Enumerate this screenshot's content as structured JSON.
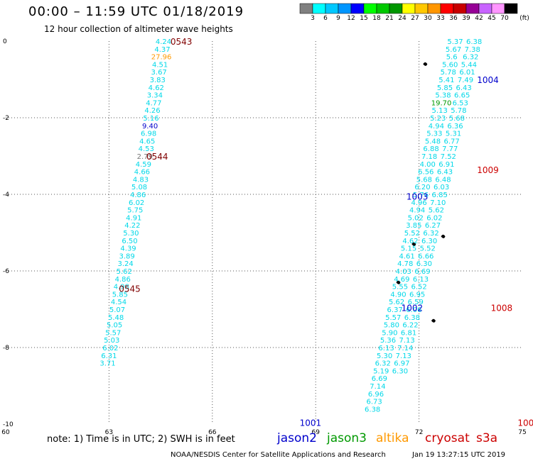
{
  "header": {
    "title": "00:00 – 11:59 UTC 01/18/2019",
    "subtitle": "12 hour collection of altimeter wave heights"
  },
  "colorbar": {
    "labels": [
      "3",
      "6",
      "9",
      "12",
      "15",
      "18",
      "21",
      "24",
      "27",
      "30",
      "33",
      "36",
      "39",
      "42",
      "45",
      "70"
    ],
    "unit": "(ft)",
    "colors": [
      "#808080",
      "#00ffff",
      "#00c8ff",
      "#0096ff",
      "#0000ff",
      "#00ff00",
      "#00c800",
      "#009600",
      "#ffff00",
      "#ffc800",
      "#ff9600",
      "#ff0000",
      "#c80000",
      "#960096",
      "#c864ff",
      "#ff96ff",
      "#000000"
    ]
  },
  "footer": {
    "note": "note: 1) Time is in UTC; 2) SWH is in feet",
    "satellites": [
      {
        "name": "jason2",
        "color": "#0000cc"
      },
      {
        "name": "jason3",
        "color": "#009900"
      },
      {
        "name": "altika",
        "color": "#ff9900"
      },
      {
        "name": "cryosat",
        "color": "#cc0000"
      },
      {
        "name": "s3a",
        "color": "#cc0000"
      }
    ],
    "credit": "NOAA/NESDIS Center for Satellite Applications and Research",
    "timestamp": "Jan 19 13:27:15 UTC 2019"
  },
  "chart_data": {
    "type": "scatter",
    "xlim": [
      60,
      75
    ],
    "ylim": [
      -10,
      0
    ],
    "x_ticks": [
      "60",
      "63",
      "66",
      "69",
      "72",
      "75"
    ],
    "y_ticks": [
      "0",
      "-2",
      "-4",
      "-6",
      "-8",
      "-10"
    ],
    "grid": true,
    "time_labels": [
      {
        "text": "0543",
        "x": 65.1,
        "y": 0.0,
        "color": "#800000"
      },
      {
        "text": "0544",
        "x": 64.4,
        "y": -3.0,
        "color": "#800000"
      },
      {
        "text": "0545",
        "x": 63.6,
        "y": -6.45,
        "color": "#800000"
      },
      {
        "text": "1004",
        "x": 74.0,
        "y": -1.0,
        "color": "#0000cc"
      },
      {
        "text": "1009",
        "x": 74.0,
        "y": -3.35,
        "color": "#cc0000"
      },
      {
        "text": "1003",
        "x": 71.95,
        "y": -4.05,
        "color": "#0000cc"
      },
      {
        "text": "1002",
        "x": 71.8,
        "y": -6.95,
        "color": "#0000cc"
      },
      {
        "text": "1008",
        "x": 74.4,
        "y": -6.95,
        "color": "#cc0000"
      },
      {
        "text": "1001",
        "x": 68.85,
        "y": -9.95,
        "color": "#0000cc"
      },
      {
        "text": "100",
        "x": 75.1,
        "y": -9.95,
        "color": "#cc0000"
      }
    ],
    "series": [
      {
        "name": "jason2",
        "color": "#00d8e8",
        "points": [
          {
            "x": 64.58,
            "y": 0.0,
            "v": "4.24"
          },
          {
            "x": 64.55,
            "y": -0.2,
            "v": "4.37"
          },
          {
            "x": 64.52,
            "y": -0.4,
            "v": "27.96",
            "c": "#ff9900"
          },
          {
            "x": 64.48,
            "y": -0.6,
            "v": "4.51"
          },
          {
            "x": 64.45,
            "y": -0.8,
            "v": "3.67"
          },
          {
            "x": 64.41,
            "y": -1.0,
            "v": "3.83"
          },
          {
            "x": 64.37,
            "y": -1.2,
            "v": "4.62"
          },
          {
            "x": 64.33,
            "y": -1.4,
            "v": "3.34"
          },
          {
            "x": 64.3,
            "y": -1.6,
            "v": "4.77"
          },
          {
            "x": 64.26,
            "y": -1.8,
            "v": "4.26"
          },
          {
            "x": 64.22,
            "y": -2.0,
            "v": "5.16"
          },
          {
            "x": 64.19,
            "y": -2.2,
            "v": "9.40",
            "c": "#0000cc"
          },
          {
            "x": 64.15,
            "y": -2.4,
            "v": "6.98"
          },
          {
            "x": 64.11,
            "y": -2.6,
            "v": "4.65"
          },
          {
            "x": 64.08,
            "y": -2.8,
            "v": "4.53"
          },
          {
            "x": 64.04,
            "y": -3.0,
            "v": "2.79",
            "c": "#777777"
          },
          {
            "x": 64.0,
            "y": -3.2,
            "v": "4.59"
          },
          {
            "x": 63.96,
            "y": -3.4,
            "v": "4.66"
          },
          {
            "x": 63.92,
            "y": -3.6,
            "v": "4.83"
          },
          {
            "x": 63.88,
            "y": -3.8,
            "v": "5.08"
          },
          {
            "x": 63.84,
            "y": -4.0,
            "v": "4.86"
          },
          {
            "x": 63.8,
            "y": -4.2,
            "v": "6.02"
          },
          {
            "x": 63.76,
            "y": -4.4,
            "v": "5.75"
          },
          {
            "x": 63.72,
            "y": -4.6,
            "v": "4.91"
          },
          {
            "x": 63.68,
            "y": -4.8,
            "v": "4.22"
          },
          {
            "x": 63.64,
            "y": -5.0,
            "v": "5.30"
          },
          {
            "x": 63.6,
            "y": -5.2,
            "v": "6.50"
          },
          {
            "x": 63.56,
            "y": -5.4,
            "v": "4.39"
          },
          {
            "x": 63.52,
            "y": -5.6,
            "v": "3.89"
          },
          {
            "x": 63.48,
            "y": -5.8,
            "v": "3.24"
          },
          {
            "x": 63.44,
            "y": -6.0,
            "v": "5.62"
          },
          {
            "x": 63.4,
            "y": -6.2,
            "v": "4.86"
          },
          {
            "x": 63.36,
            "y": -6.4,
            "v": "4.98"
          },
          {
            "x": 63.32,
            "y": -6.6,
            "v": "5.85"
          },
          {
            "x": 63.28,
            "y": -6.8,
            "v": "4.54"
          },
          {
            "x": 63.24,
            "y": -7.0,
            "v": "5.07"
          },
          {
            "x": 63.2,
            "y": -7.2,
            "v": "5.48"
          },
          {
            "x": 63.16,
            "y": -7.4,
            "v": "5.05"
          },
          {
            "x": 63.12,
            "y": -7.6,
            "v": "5.57"
          },
          {
            "x": 63.08,
            "y": -7.8,
            "v": "5.03"
          },
          {
            "x": 63.04,
            "y": -8.0,
            "v": "6.02"
          },
          {
            "x": 63.0,
            "y": -8.2,
            "v": "6.31"
          },
          {
            "x": 62.96,
            "y": -8.4,
            "v": "3.71"
          }
        ]
      },
      {
        "name": "jason3",
        "color": "#00d8e8",
        "points": [
          {
            "x": 73.05,
            "y": 0.0,
            "v": "5.37"
          },
          {
            "x": 73.0,
            "y": -0.2,
            "v": "5.67"
          },
          {
            "x": 72.95,
            "y": -0.4,
            "v": "5.6"
          },
          {
            "x": 72.9,
            "y": -0.6,
            "v": "5.60"
          },
          {
            "x": 72.85,
            "y": -0.8,
            "v": "5.78"
          },
          {
            "x": 72.8,
            "y": -1.0,
            "v": "5.41"
          },
          {
            "x": 72.75,
            "y": -1.2,
            "v": "5.85"
          },
          {
            "x": 72.7,
            "y": -1.4,
            "v": "5.38"
          },
          {
            "x": 72.65,
            "y": -1.6,
            "v": "19.70",
            "c": "#009900"
          },
          {
            "x": 72.6,
            "y": -1.8,
            "v": "5.13"
          },
          {
            "x": 72.55,
            "y": -2.0,
            "v": "5.23"
          },
          {
            "x": 72.5,
            "y": -2.2,
            "v": "4.94"
          },
          {
            "x": 72.45,
            "y": -2.4,
            "v": "5.33"
          },
          {
            "x": 72.4,
            "y": -2.6,
            "v": "5.48"
          },
          {
            "x": 72.35,
            "y": -2.8,
            "v": "6.88"
          },
          {
            "x": 72.3,
            "y": -3.0,
            "v": "7.18"
          },
          {
            "x": 72.25,
            "y": -3.2,
            "v": "4.00"
          },
          {
            "x": 72.2,
            "y": -3.4,
            "v": "6.56"
          },
          {
            "x": 72.15,
            "y": -3.6,
            "v": "5.68"
          },
          {
            "x": 72.1,
            "y": -3.8,
            "v": "6.20"
          },
          {
            "x": 72.05,
            "y": -4.0,
            "v": "5.76"
          },
          {
            "x": 72.0,
            "y": -4.2,
            "v": "4.96"
          },
          {
            "x": 71.95,
            "y": -4.4,
            "v": "4.94"
          },
          {
            "x": 71.9,
            "y": -4.6,
            "v": "5.02"
          },
          {
            "x": 71.85,
            "y": -4.8,
            "v": "3.85"
          },
          {
            "x": 71.8,
            "y": -5.0,
            "v": "5.52"
          },
          {
            "x": 71.75,
            "y": -5.2,
            "v": "4.62"
          },
          {
            "x": 71.7,
            "y": -5.4,
            "v": "5.15"
          },
          {
            "x": 71.65,
            "y": -5.6,
            "v": "4.61"
          },
          {
            "x": 71.6,
            "y": -5.8,
            "v": "4.78"
          },
          {
            "x": 71.55,
            "y": -6.0,
            "v": "4.03"
          },
          {
            "x": 71.5,
            "y": -6.2,
            "v": "4.69"
          },
          {
            "x": 71.45,
            "y": -6.4,
            "v": "5.55"
          },
          {
            "x": 71.4,
            "y": -6.6,
            "v": "4.90"
          },
          {
            "x": 71.35,
            "y": -6.8,
            "v": "5.62"
          },
          {
            "x": 71.3,
            "y": -7.0,
            "v": "6.37"
          },
          {
            "x": 71.25,
            "y": -7.2,
            "v": "5.57"
          },
          {
            "x": 71.2,
            "y": -7.4,
            "v": "5.80"
          },
          {
            "x": 71.15,
            "y": -7.6,
            "v": "5.90"
          },
          {
            "x": 71.1,
            "y": -7.8,
            "v": "5.36"
          },
          {
            "x": 71.05,
            "y": -8.0,
            "v": "6.13"
          },
          {
            "x": 71.0,
            "y": -8.2,
            "v": "5.30"
          },
          {
            "x": 70.95,
            "y": -8.4,
            "v": "6.32"
          },
          {
            "x": 70.9,
            "y": -8.6,
            "v": "5.19"
          },
          {
            "x": 70.85,
            "y": -8.8,
            "v": "6.69"
          },
          {
            "x": 70.8,
            "y": -9.0,
            "v": "7.14"
          },
          {
            "x": 70.75,
            "y": -9.2,
            "v": "6.96"
          },
          {
            "x": 70.7,
            "y": -9.4,
            "v": "6.73"
          },
          {
            "x": 70.65,
            "y": -9.6,
            "v": "6.38"
          }
        ]
      },
      {
        "name": "s3a",
        "color": "#00d8e8",
        "points": [
          {
            "x": 73.6,
            "y": 0.0,
            "v": "6.38"
          },
          {
            "x": 73.55,
            "y": -0.2,
            "v": "7.38"
          },
          {
            "x": 73.5,
            "y": -0.4,
            "v": "6.32"
          },
          {
            "x": 73.45,
            "y": -0.6,
            "v": "5.44"
          },
          {
            "x": 73.4,
            "y": -0.8,
            "v": "6.01"
          },
          {
            "x": 73.35,
            "y": -1.0,
            "v": "7.49"
          },
          {
            "x": 73.3,
            "y": -1.2,
            "v": "6.43"
          },
          {
            "x": 73.25,
            "y": -1.4,
            "v": "6.65"
          },
          {
            "x": 73.2,
            "y": -1.6,
            "v": "6.53"
          },
          {
            "x": 73.15,
            "y": -1.8,
            "v": "5.78"
          },
          {
            "x": 73.1,
            "y": -2.0,
            "v": "5.68"
          },
          {
            "x": 73.05,
            "y": -2.2,
            "v": "6.36"
          },
          {
            "x": 73.0,
            "y": -2.4,
            "v": "5.31"
          },
          {
            "x": 72.95,
            "y": -2.6,
            "v": "6.77"
          },
          {
            "x": 72.9,
            "y": -2.8,
            "v": "7.77"
          },
          {
            "x": 72.85,
            "y": -3.0,
            "v": "7.52"
          },
          {
            "x": 72.8,
            "y": -3.2,
            "v": "6.91"
          },
          {
            "x": 72.75,
            "y": -3.4,
            "v": "6.43"
          },
          {
            "x": 72.7,
            "y": -3.6,
            "v": "6.48"
          },
          {
            "x": 72.65,
            "y": -3.8,
            "v": "6.03"
          },
          {
            "x": 72.6,
            "y": -4.0,
            "v": "6.85"
          },
          {
            "x": 72.55,
            "y": -4.2,
            "v": "7.10"
          },
          {
            "x": 72.5,
            "y": -4.4,
            "v": "5.62"
          },
          {
            "x": 72.45,
            "y": -4.6,
            "v": "6.02"
          },
          {
            "x": 72.4,
            "y": -4.8,
            "v": "6.27"
          },
          {
            "x": 72.35,
            "y": -5.0,
            "v": "6.32"
          },
          {
            "x": 72.3,
            "y": -5.2,
            "v": "6.30"
          },
          {
            "x": 72.25,
            "y": -5.4,
            "v": "5.52"
          },
          {
            "x": 72.2,
            "y": -5.6,
            "v": "6.66"
          },
          {
            "x": 72.15,
            "y": -5.8,
            "v": "6.30"
          },
          {
            "x": 72.1,
            "y": -6.0,
            "v": "6.69"
          },
          {
            "x": 72.05,
            "y": -6.2,
            "v": "6.13"
          },
          {
            "x": 72.0,
            "y": -6.4,
            "v": "6.52"
          },
          {
            "x": 71.95,
            "y": -6.6,
            "v": "6.95"
          },
          {
            "x": 71.9,
            "y": -6.8,
            "v": "6.59"
          },
          {
            "x": 71.85,
            "y": -7.0,
            "v": "6.06"
          },
          {
            "x": 71.8,
            "y": -7.2,
            "v": "6.38"
          },
          {
            "x": 71.75,
            "y": -7.4,
            "v": "6.22"
          },
          {
            "x": 71.7,
            "y": -7.6,
            "v": "6.81"
          },
          {
            "x": 71.65,
            "y": -7.8,
            "v": "7.13"
          },
          {
            "x": 71.6,
            "y": -8.0,
            "v": "7.14"
          },
          {
            "x": 71.55,
            "y": -8.2,
            "v": "7.13"
          },
          {
            "x": 71.5,
            "y": -8.4,
            "v": "6.97"
          },
          {
            "x": 71.45,
            "y": -8.6,
            "v": "6.30"
          }
        ]
      }
    ]
  }
}
